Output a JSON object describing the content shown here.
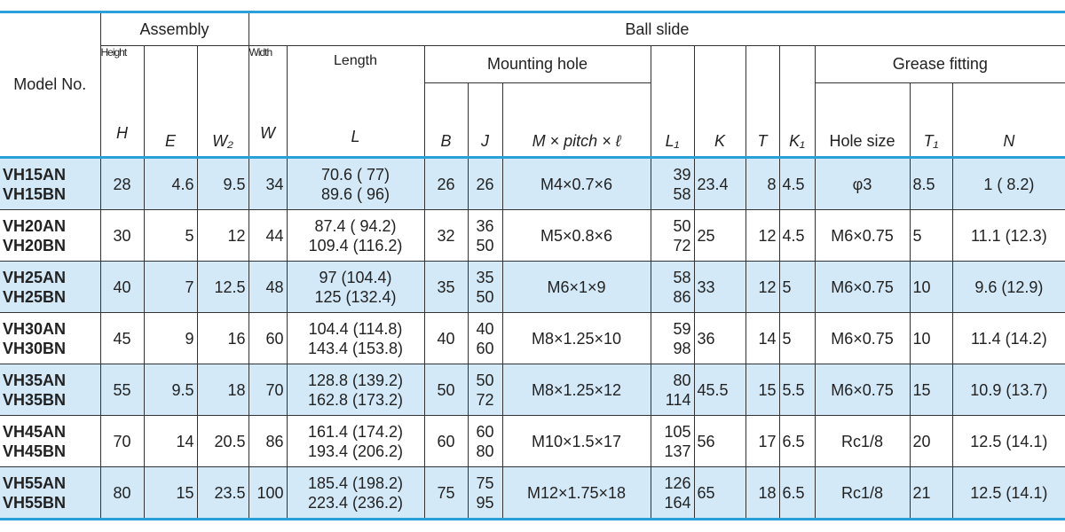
{
  "header": {
    "model": "Model No.",
    "assembly": "Assembly",
    "ball_slide": "Ball slide",
    "height": "Height",
    "width": "Width",
    "length": "Length",
    "mounting_hole": "Mounting hole",
    "grease_fitting": "Grease fitting",
    "symbols": [
      "H",
      "E",
      "W₂",
      "W",
      "L",
      "B",
      "J",
      "M × pitch × ℓ",
      "L₁",
      "K",
      "T",
      "K₁",
      "Hole size",
      "T₁",
      "N"
    ]
  },
  "table": {
    "rows": [
      [
        [
          "VH15AN",
          "VH15BN"
        ],
        28,
        4.6,
        9.5,
        34,
        [
          "70.6 ( 77)",
          "89.6 ( 96)"
        ],
        26,
        [
          26
        ],
        "M4×0.7×6",
        [
          39,
          58
        ],
        23.4,
        8,
        4.5,
        "φ3",
        8.5,
        "1 ( 8.2)"
      ],
      [
        [
          "VH20AN",
          "VH20BN"
        ],
        30,
        5,
        12,
        44,
        [
          "87.4 ( 94.2)",
          "109.4 (116.2)"
        ],
        32,
        [
          36,
          50
        ],
        "M5×0.8×6",
        [
          50,
          72
        ],
        25,
        12,
        4.5,
        "M6×0.75",
        5,
        "11.1 (12.3)"
      ],
      [
        [
          "VH25AN",
          "VH25BN"
        ],
        40,
        7,
        12.5,
        48,
        [
          "97 (104.4)",
          "125 (132.4)"
        ],
        35,
        [
          35,
          50
        ],
        "M6×1×9",
        [
          58,
          86
        ],
        33,
        12,
        5,
        "M6×0.75",
        10,
        "9.6 (12.9)"
      ],
      [
        [
          "VH30AN",
          "VH30BN"
        ],
        45,
        9,
        16,
        60,
        [
          "104.4 (114.8)",
          "143.4 (153.8)"
        ],
        40,
        [
          40,
          60
        ],
        "M8×1.25×10",
        [
          59,
          98
        ],
        36,
        14,
        5,
        "M6×0.75",
        10,
        "11.4 (14.2)"
      ],
      [
        [
          "VH35AN",
          "VH35BN"
        ],
        55,
        9.5,
        18,
        70,
        [
          "128.8 (139.2)",
          "162.8 (173.2)"
        ],
        50,
        [
          50,
          72
        ],
        "M8×1.25×12",
        [
          80,
          114
        ],
        45.5,
        15,
        5.5,
        "M6×0.75",
        15,
        "10.9 (13.7)"
      ],
      [
        [
          "VH45AN",
          "VH45BN"
        ],
        70,
        14,
        20.5,
        86,
        [
          "161.4 (174.2)",
          "193.4 (206.2)"
        ],
        60,
        [
          60,
          80
        ],
        "M10×1.5×17",
        [
          105,
          137
        ],
        56,
        17,
        6.5,
        "Rc1/8",
        20,
        "12.5 (14.1)"
      ],
      [
        [
          "VH55AN",
          "VH55BN"
        ],
        80,
        15,
        23.5,
        100,
        [
          "185.4 (198.2)",
          "223.4 (236.2)"
        ],
        75,
        [
          75,
          95
        ],
        "M12×1.75×18",
        [
          126,
          164
        ],
        65,
        18,
        6.5,
        "Rc1/8",
        21,
        "12.5 (14.1)"
      ]
    ]
  }
}
